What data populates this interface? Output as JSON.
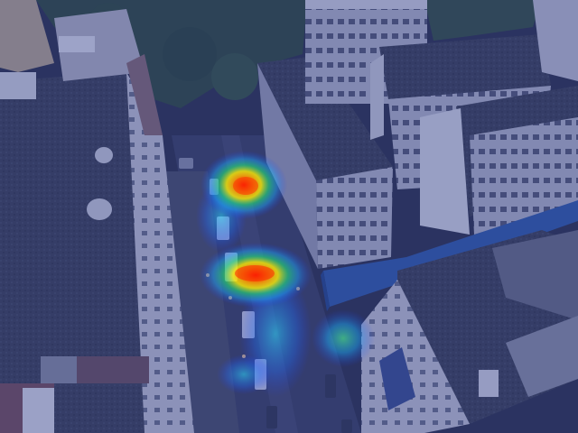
{
  "image": {
    "kind": "aerial-photo-with-heatmap-overlay",
    "overlay_tint": "#2b3a8f",
    "heat_colors": [
      "#ff0000",
      "#ffa500",
      "#ffff00",
      "#00ff80",
      "#00bfff",
      "#1e3cff"
    ]
  }
}
